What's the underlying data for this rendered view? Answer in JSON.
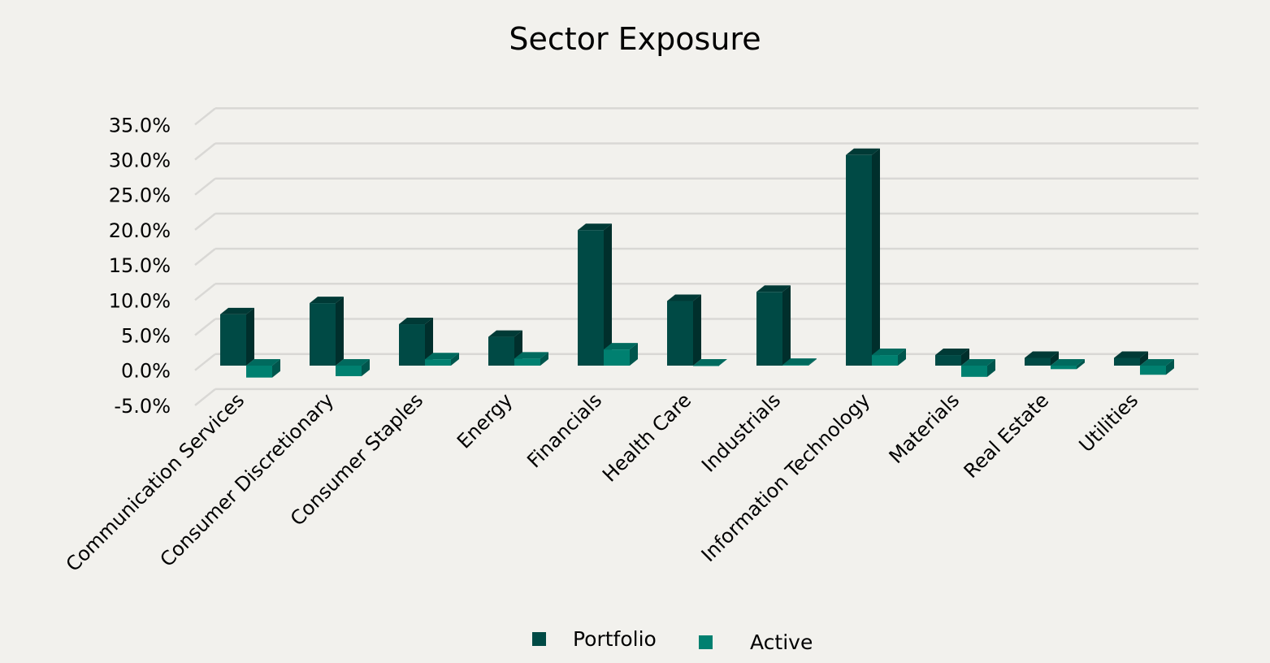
{
  "chart_data": {
    "type": "bar",
    "title": "Sector Exposure",
    "style": "3d-clustered-column",
    "categories": [
      "Communication Services",
      "Consumer Discretionary",
      "Consumer Staples",
      "Energy",
      "Financials",
      "Health Care",
      "Industrials",
      "Information Technology",
      "Materials",
      "Real Estate",
      "Utilities"
    ],
    "series": [
      {
        "name": "Portfolio",
        "color": "#004a45",
        "values": [
          7.3,
          8.9,
          5.9,
          4.1,
          19.3,
          9.2,
          10.5,
          30.0,
          1.5,
          1.1,
          1.1
        ]
      },
      {
        "name": "Active",
        "color": "#008070",
        "values": [
          -1.7,
          -1.5,
          0.9,
          1.0,
          2.3,
          0.0,
          0.1,
          1.5,
          -1.6,
          -0.5,
          -1.3
        ]
      }
    ],
    "yticks": [
      "-5.0%",
      "0.0%",
      "5.0%",
      "10.0%",
      "15.0%",
      "20.0%",
      "25.0%",
      "30.0%",
      "35.0%"
    ],
    "ylim": [
      -5,
      35
    ],
    "grid": true,
    "legend_position": "bottom",
    "xlabel": "",
    "ylabel": ""
  }
}
